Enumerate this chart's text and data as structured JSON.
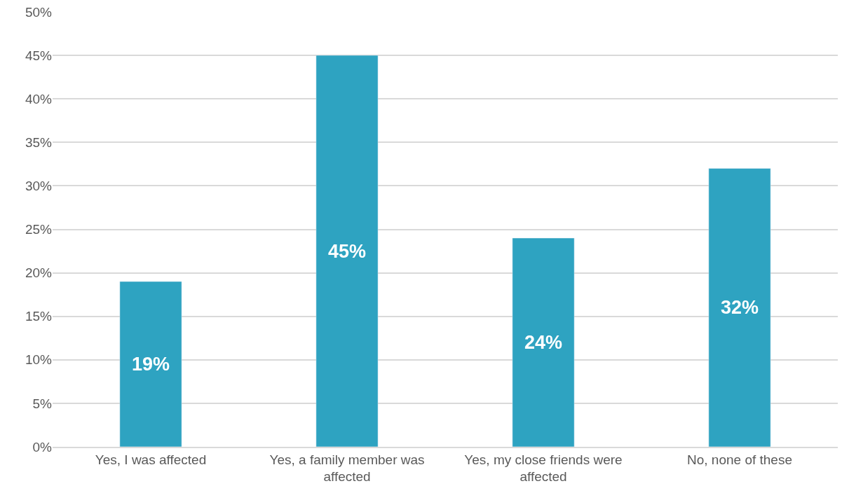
{
  "chart_data": {
    "type": "bar",
    "categories": [
      "Yes, I was affected",
      "Yes, a family member was affected",
      "Yes, my close friends were affected",
      "No, none of these"
    ],
    "values": [
      19,
      45,
      24,
      32
    ],
    "value_labels": [
      "19%",
      "45%",
      "24%",
      "32%"
    ],
    "color": "#2ea3c1",
    "ylim": [
      0,
      50
    ],
    "yticks": [
      {
        "value": 0,
        "label": "0%"
      },
      {
        "value": 5,
        "label": "5%"
      },
      {
        "value": 10,
        "label": "10%"
      },
      {
        "value": 15,
        "label": "15%"
      },
      {
        "value": 20,
        "label": "20%"
      },
      {
        "value": 25,
        "label": "25%"
      },
      {
        "value": 30,
        "label": "30%"
      },
      {
        "value": 35,
        "label": "35%"
      },
      {
        "value": 40,
        "label": "40%"
      },
      {
        "value": 45,
        "label": "45%"
      },
      {
        "value": 50,
        "label": "50%"
      }
    ],
    "grid": "y"
  }
}
